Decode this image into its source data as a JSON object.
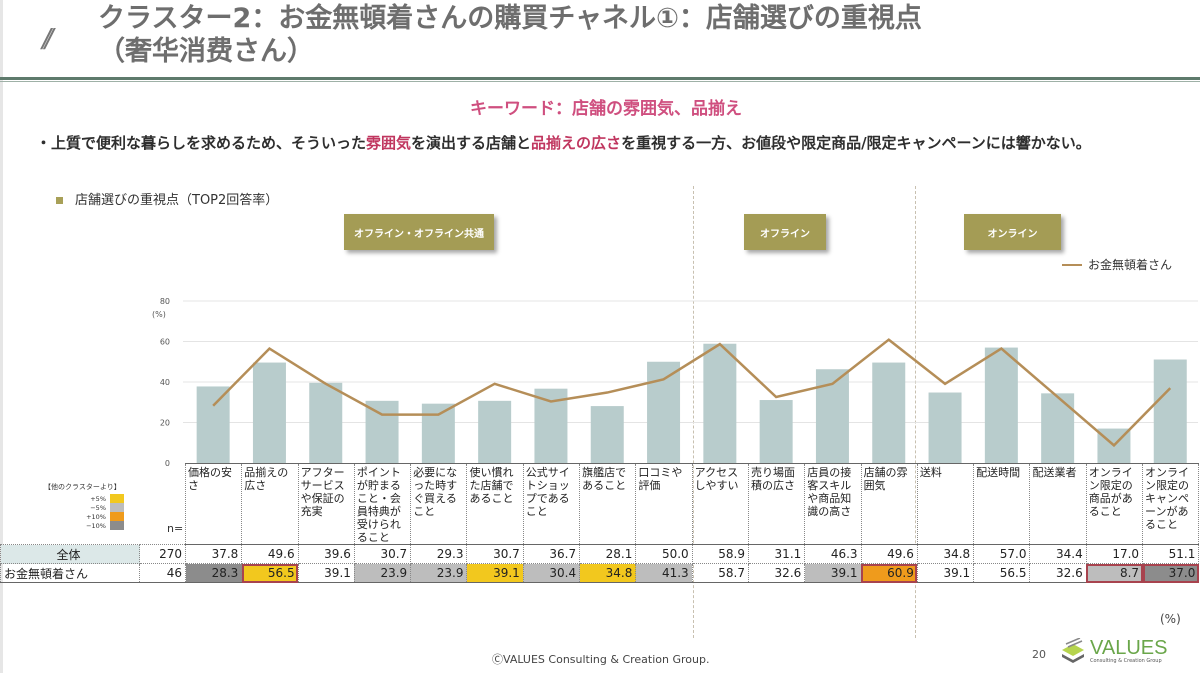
{
  "header": {
    "title_line1": "クラスター2：お金無頓着さんの購買チャネル①：店舗選びの重視点",
    "title_line2": "（奢华消费さん）",
    "decoration": "//"
  },
  "keyword": "キーワード：店舗の雰囲気、品揃え",
  "summary": {
    "part1": "・上質で便利な暮らしを求めるため、そういった",
    "highlight1": "雰囲気",
    "part2": "を演出する店舗と",
    "highlight2": "品揃えの広さ",
    "part3": "を重視する一方、お値段や限定商品/限定キャンペーンには響かない。"
  },
  "section_label": "店舗選びの重視点（TOP2回答率）",
  "category_badges": [
    {
      "label": "オフライン・オフライン共通"
    },
    {
      "label": "オフライン"
    },
    {
      "label": "オンライン"
    }
  ],
  "colors": {
    "bar": "#b8cccc",
    "line": "#b58e58",
    "badge": "#a49c55",
    "plus5": "#f2c81e",
    "minus5": "#bdbdbd",
    "plus10": "#ef9b1c",
    "minus10": "#8c8c8c",
    "keyword": "#cf4f7f",
    "highlight": "#c0365f"
  },
  "heat_legend": {
    "title": "【他のクラスターより】",
    "items": [
      {
        "label": "+5%",
        "key": "plus5"
      },
      {
        "label": "−5%",
        "key": "minus5"
      },
      {
        "label": "+10%",
        "key": "plus10"
      },
      {
        "label": "−10%",
        "key": "minus10"
      }
    ]
  },
  "table": {
    "n_label": "n=",
    "unit": "(%)",
    "rows": [
      {
        "label": "全体",
        "n": "270"
      },
      {
        "label": "お金無頓着さん",
        "n": "46"
      }
    ]
  },
  "chart_data": {
    "type": "bar+line",
    "title": "店舗選びの重視点（TOP2回答率）",
    "ylabel": "(%)",
    "ylim": [
      0,
      80
    ],
    "yticks": [
      "0",
      "20",
      "40",
      "60",
      "80"
    ],
    "grid": true,
    "legend": {
      "position": "top-right",
      "entries": [
        "お金無頓着さん"
      ]
    },
    "groups": [
      {
        "label": "オフライン・オフライン共通",
        "from": 0,
        "to": 8
      },
      {
        "label": "オフライン",
        "from": 9,
        "to": 12
      },
      {
        "label": "オンライン",
        "from": 13,
        "to": 17
      }
    ],
    "categories": [
      "価格の安さ",
      "品揃えの広さ",
      "アフターサービスや保証の充実",
      "ポイントが貯まること・会員特典が受けられること",
      "必要になった時すぐ買えること",
      "使い慣れた店舗であること",
      "公式サイトショップであること",
      "旗艦店であること",
      "口コミや評価",
      "アクセスしやすい",
      "売り場面積の広さ",
      "店員の接客スキルや商品知識の高さ",
      "店舗の雰囲気",
      "送料",
      "配送時間",
      "配送業者",
      "オンライン限定の商品があること",
      "オンライン限定のキャンペーンがあること"
    ],
    "series": [
      {
        "name": "全体",
        "type": "bar",
        "values": [
          37.8,
          49.6,
          39.6,
          30.7,
          29.3,
          30.7,
          36.7,
          28.1,
          50.0,
          58.9,
          31.1,
          46.3,
          49.6,
          34.8,
          57.0,
          34.4,
          17.0,
          51.1
        ]
      },
      {
        "name": "お金無頓着さん",
        "type": "line",
        "values": [
          28.3,
          56.5,
          39.1,
          23.9,
          23.9,
          39.1,
          30.4,
          34.8,
          41.3,
          58.7,
          32.6,
          39.1,
          60.9,
          39.1,
          56.5,
          32.6,
          8.7,
          37.0
        ]
      }
    ],
    "cell_highlights": [
      "minus10",
      "plus5",
      "none",
      "minus5",
      "minus5",
      "plus5",
      "minus5",
      "plus5",
      "minus5",
      "none",
      "none",
      "minus5",
      "plus10",
      "none",
      "none",
      "none",
      "minus5",
      "minus10"
    ],
    "cell_outlined": [
      false,
      true,
      false,
      false,
      false,
      false,
      false,
      false,
      false,
      false,
      false,
      false,
      true,
      false,
      false,
      false,
      true,
      true
    ]
  },
  "footer": {
    "copyright": "ⒸVALUES Consulting & Creation Group.",
    "page": "20",
    "logo_text": "VALUES",
    "logo_sub": "Consulting & Creation Group"
  }
}
